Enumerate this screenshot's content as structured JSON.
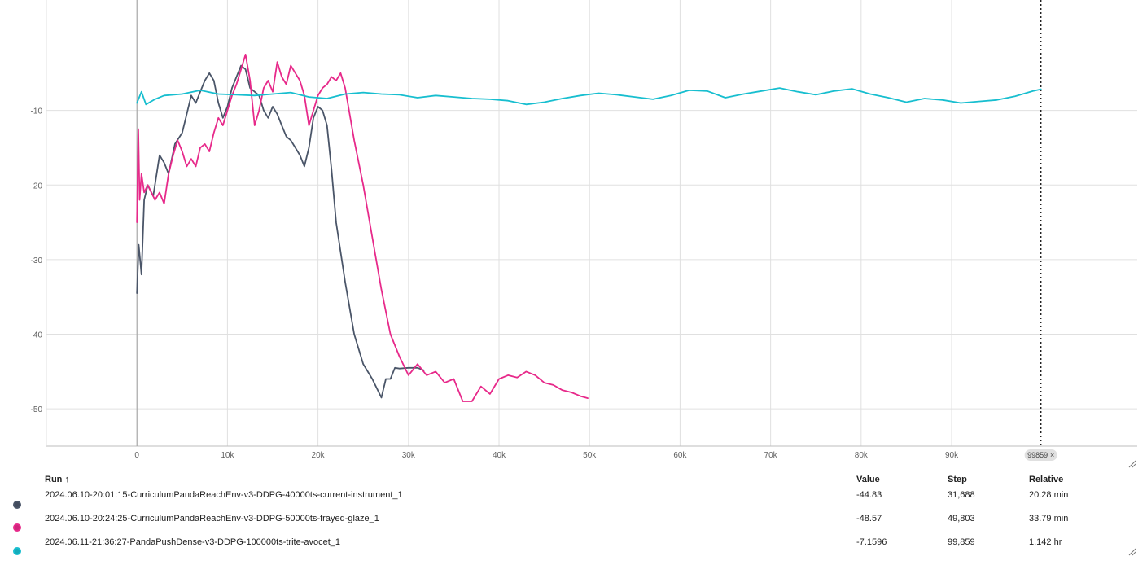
{
  "chart_data": {
    "type": "line",
    "xlim": [
      -10000,
      110500
    ],
    "ylim": [
      -55,
      4.8
    ],
    "x_ticks": [
      0,
      10000,
      20000,
      30000,
      40000,
      50000,
      60000,
      70000,
      80000,
      90000
    ],
    "x_tick_labels": [
      "0",
      "10k",
      "20k",
      "30k",
      "40k",
      "50k",
      "60k",
      "70k",
      "80k",
      "90k"
    ],
    "y_ticks": [
      -10,
      -20,
      -30,
      -40,
      -50
    ],
    "y_tick_labels": [
      "-10",
      "-20",
      "-30",
      "-40",
      "-50"
    ],
    "grid": true,
    "cursor_step": 99859,
    "cursor_label": "99859",
    "series": [
      {
        "name": "2024.06.10-20:01:15-CurriculumPandaReachEnv-v3-DDPG-40000ts-current-instrument_1",
        "color": "#4a5568",
        "x": [
          0,
          200,
          500,
          800,
          1200,
          1800,
          2500,
          3000,
          3500,
          4200,
          5000,
          5500,
          6000,
          6500,
          7000,
          7500,
          8000,
          8500,
          9000,
          9500,
          10000,
          10500,
          11000,
          11500,
          12000,
          12500,
          13000,
          13500,
          14000,
          14500,
          15000,
          15500,
          16000,
          16500,
          17000,
          17500,
          18000,
          18500,
          19000,
          19500,
          20000,
          20500,
          21000,
          21500,
          22000,
          23000,
          24000,
          25000,
          26000,
          27000,
          27500,
          28000,
          28500,
          29000,
          30000,
          31000,
          31688
        ],
        "y": [
          -34.5,
          -28,
          -32,
          -22,
          -20,
          -21.5,
          -16,
          -17,
          -18.5,
          -14.5,
          -13,
          -10.5,
          -8,
          -9,
          -7.5,
          -6,
          -5,
          -6,
          -9,
          -11,
          -9.5,
          -7,
          -5.5,
          -4,
          -4.5,
          -7,
          -7.5,
          -8,
          -10,
          -11,
          -9.5,
          -10.5,
          -12,
          -13.5,
          -14,
          -15,
          -16,
          -17.5,
          -15,
          -11,
          -9.5,
          -10,
          -12,
          -18,
          -25,
          -33,
          -40,
          -44,
          -46,
          -48.5,
          -46,
          -46,
          -44.5,
          -44.6,
          -44.5,
          -44.5,
          -44.83
        ]
      },
      {
        "name": "2024.06.10-20:24:25-CurriculumPandaReachEnv-v3-DDPG-50000ts-frayed-glaze_1",
        "color": "#e7298a",
        "x": [
          0,
          150,
          300,
          500,
          800,
          1200,
          1600,
          2000,
          2500,
          3000,
          3500,
          4000,
          4500,
          5000,
          5500,
          6000,
          6500,
          7000,
          7500,
          8000,
          8500,
          9000,
          9500,
          10000,
          10500,
          11000,
          11500,
          12000,
          12500,
          13000,
          13500,
          14000,
          14500,
          15000,
          15500,
          16000,
          16500,
          17000,
          17500,
          18000,
          18500,
          19000,
          20000,
          20500,
          21000,
          21500,
          22000,
          22500,
          23000,
          24000,
          25000,
          26000,
          27000,
          28000,
          29000,
          30000,
          31000,
          32000,
          33000,
          34000,
          35000,
          36000,
          37000,
          38000,
          39000,
          40000,
          41000,
          42000,
          43000,
          44000,
          45000,
          46000,
          47000,
          48000,
          49000,
          49803
        ],
        "y": [
          -25,
          -12.5,
          -22,
          -18.5,
          -21,
          -20,
          -21,
          -22,
          -21,
          -22.5,
          -18.5,
          -16,
          -14,
          -15.5,
          -17.5,
          -16.5,
          -17.5,
          -15,
          -14.5,
          -15.5,
          -13,
          -11,
          -12,
          -10,
          -8,
          -6.5,
          -4.5,
          -2.5,
          -6,
          -12,
          -10,
          -7,
          -6,
          -7.5,
          -3.5,
          -5.5,
          -6.5,
          -4,
          -5,
          -6,
          -8,
          -12,
          -8,
          -7,
          -6.5,
          -5.5,
          -6,
          -5,
          -7,
          -14,
          -20,
          -27,
          -34,
          -40,
          -43,
          -45.5,
          -44,
          -45.5,
          -45,
          -46.5,
          -46,
          -49,
          -49,
          -47,
          -48,
          -46,
          -45.5,
          -45.8,
          -45,
          -45.5,
          -46.5,
          -46.8,
          -47.5,
          -47.8,
          -48.3,
          -48.57
        ]
      },
      {
        "name": "2024.06.11-21:36:27-PandaPushDense-v3-DDPG-100000ts-trite-avocet_1",
        "color": "#17becf",
        "x": [
          0,
          500,
          1000,
          2000,
          3000,
          5000,
          7000,
          9000,
          11000,
          13000,
          15000,
          17000,
          19000,
          21000,
          23000,
          25000,
          27000,
          29000,
          31000,
          33000,
          35000,
          37000,
          39000,
          41000,
          43000,
          45000,
          47000,
          49000,
          51000,
          53000,
          55000,
          57000,
          59000,
          61000,
          63000,
          65000,
          67000,
          69000,
          71000,
          73000,
          75000,
          77000,
          79000,
          81000,
          83000,
          85000,
          87000,
          89000,
          91000,
          93000,
          95000,
          97000,
          99000,
          99859
        ],
        "y": [
          -9,
          -7.5,
          -9.2,
          -8.5,
          -8,
          -7.8,
          -7.3,
          -7.8,
          -7.9,
          -8,
          -7.8,
          -7.6,
          -8.2,
          -8.4,
          -7.8,
          -7.6,
          -7.8,
          -7.9,
          -8.3,
          -8,
          -8.2,
          -8.4,
          -8.5,
          -8.7,
          -9.2,
          -8.9,
          -8.4,
          -8,
          -7.7,
          -7.9,
          -8.2,
          -8.5,
          -8,
          -7.3,
          -7.4,
          -8.3,
          -7.8,
          -7.4,
          -7,
          -7.5,
          -7.9,
          -7.4,
          -7.1,
          -7.8,
          -8.3,
          -8.9,
          -8.4,
          -8.6,
          -9,
          -8.8,
          -8.6,
          -8.1,
          -7.4,
          -7.16
        ]
      }
    ]
  },
  "table": {
    "headers": {
      "run": "Run ↑",
      "value": "Value",
      "step": "Step",
      "relative": "Relative"
    },
    "rows": [
      {
        "run": "2024.06.10-20:01:15-CurriculumPandaReachEnv-v3-DDPG-40000ts-current-instrument_1",
        "value": "-44.83",
        "step": "31,688",
        "relative": "20.28 min",
        "color": "#4a5568"
      },
      {
        "run": "2024.06.10-20:24:25-CurriculumPandaReachEnv-v3-DDPG-50000ts-frayed-glaze_1",
        "value": "-48.57",
        "step": "49,803",
        "relative": "33.79 min",
        "color": "#e7298a"
      },
      {
        "run": "2024.06.11-21:36:27-PandaPushDense-v3-DDPG-100000ts-trite-avocet_1",
        "value": "-7.1596",
        "step": "99,859",
        "relative": "1.142 hr",
        "color": "#17becf"
      }
    ]
  }
}
